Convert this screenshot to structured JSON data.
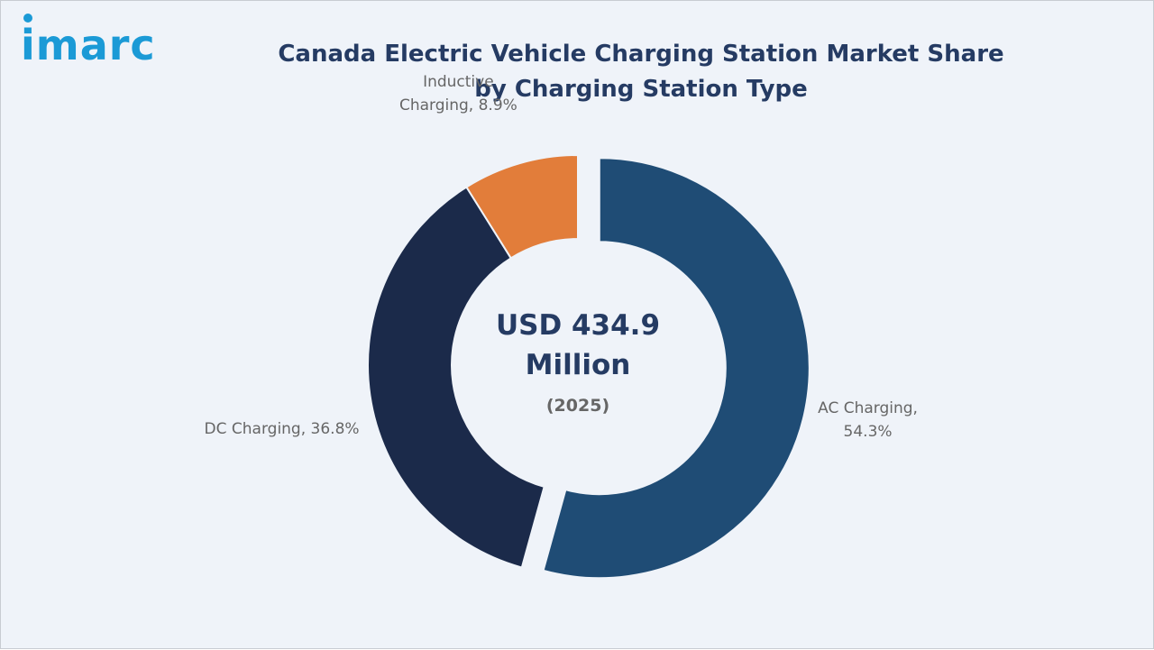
{
  "logo": "imarc",
  "chart_data": {
    "type": "pie",
    "donut": true,
    "title": "Canada Electric Vehicle Charging Station Market Share by Charging Station Type",
    "center_text": "USD 434.9 Million",
    "center_subtext": "(2025)",
    "values": [
      54.3,
      36.8,
      8.9
    ],
    "value_labels": [
      "AC Charging, 54.3%",
      "DC Charging, 36.8%",
      "Inductive Charging, 8.9%"
    ],
    "colors": [
      "#1f4c75",
      "#1b2a4a",
      "#e27d3a"
    ],
    "explode": [
      true,
      false,
      false
    ]
  }
}
